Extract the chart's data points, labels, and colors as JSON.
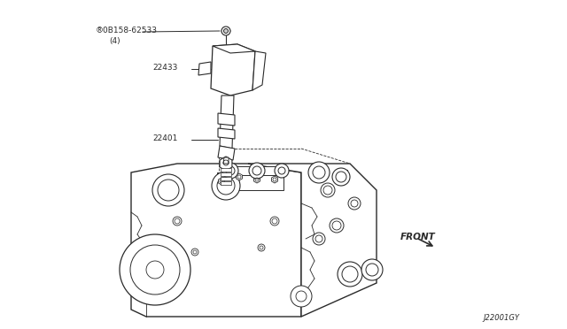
{
  "bg_color": "#ffffff",
  "lc": "#2a2a2a",
  "fig_width": 6.4,
  "fig_height": 3.72,
  "dpi": 100,
  "label_08158": "®0B158-62533",
  "label_08158_sub": "(4)",
  "label_22433": "22433",
  "label_22401": "22401",
  "label_front": "FRONT",
  "label_id": "J22001GY",
  "font_size_labels": 6.5,
  "font_size_id": 6.0
}
